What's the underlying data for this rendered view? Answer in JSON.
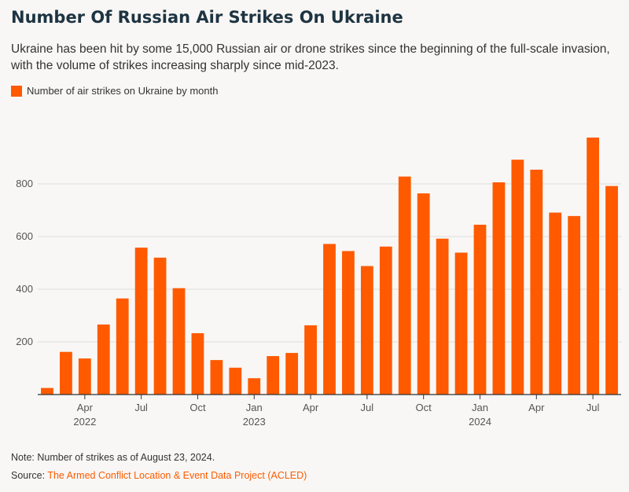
{
  "header": {
    "title": "Number Of Russian Air Strikes On Ukraine",
    "subtitle": "Ukraine has been hit by some 15,000 Russian air or drone strikes since the beginning of the full-scale invasion, with the volume of strikes increasing sharply since mid-2023."
  },
  "legend": {
    "label": "Number of air strikes on Ukraine by month"
  },
  "colors": {
    "bar": "#ff5a00",
    "grid": "#dddddd",
    "axis": "#333333",
    "tick_text": "#555555"
  },
  "chart_data": {
    "type": "bar",
    "categories": [
      "2022-02",
      "2022-03",
      "2022-04",
      "2022-05",
      "2022-06",
      "2022-07",
      "2022-08",
      "2022-09",
      "2022-10",
      "2022-11",
      "2022-12",
      "2023-01",
      "2023-02",
      "2023-03",
      "2023-04",
      "2023-05",
      "2023-06",
      "2023-07",
      "2023-08",
      "2023-09",
      "2023-10",
      "2023-11",
      "2023-12",
      "2024-01",
      "2024-02",
      "2024-03",
      "2024-04",
      "2024-05",
      "2024-06",
      "2024-07",
      "2024-08"
    ],
    "series": [
      {
        "name": "Number of air strikes on Ukraine by month",
        "values": [
          25,
          162,
          137,
          266,
          365,
          558,
          520,
          404,
          233,
          131,
          102,
          62,
          146,
          158,
          263,
          572,
          545,
          488,
          562,
          828,
          764,
          592,
          539,
          645,
          806,
          892,
          854,
          691,
          678,
          976,
          792
        ]
      }
    ],
    "ylim": [
      0,
      1000
    ],
    "yticks": [
      200,
      400,
      600,
      800
    ],
    "xticks": [
      {
        "index": 2,
        "month": "Apr",
        "year": "2022"
      },
      {
        "index": 5,
        "month": "Jul",
        "year": ""
      },
      {
        "index": 8,
        "month": "Oct",
        "year": ""
      },
      {
        "index": 11,
        "month": "Jan",
        "year": "2023"
      },
      {
        "index": 14,
        "month": "Apr",
        "year": ""
      },
      {
        "index": 17,
        "month": "Jul",
        "year": ""
      },
      {
        "index": 20,
        "month": "Oct",
        "year": ""
      },
      {
        "index": 23,
        "month": "Jan",
        "year": "2024"
      },
      {
        "index": 26,
        "month": "Apr",
        "year": ""
      },
      {
        "index": 29,
        "month": "Jul",
        "year": ""
      }
    ],
    "grid": true,
    "legend_position": "top-left"
  },
  "footer": {
    "note": "Note: Number of strikes as of August 23, 2024.",
    "source_label": "Source: ",
    "source_link": "The Armed Conflict Location & Event Data Project (ACLED)"
  }
}
